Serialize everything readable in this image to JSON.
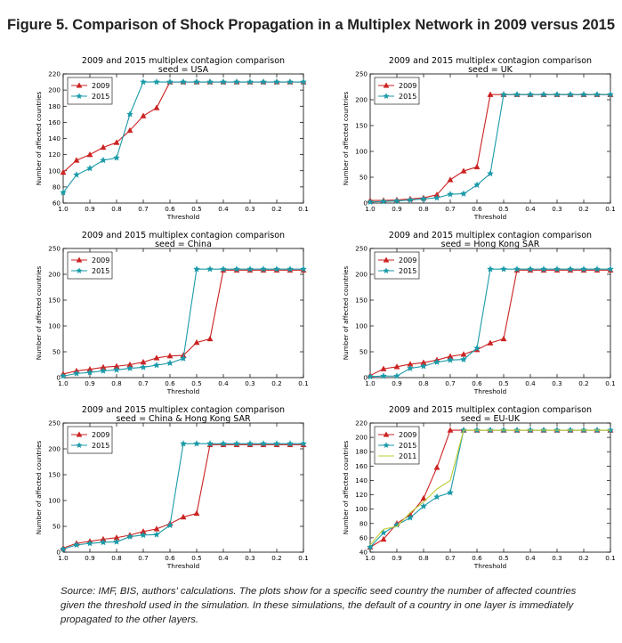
{
  "figure_title": "Figure 5. Comparison of Shock Propagation in a Multiplex Network in 2009 versus 2015",
  "source_note": "Source: IMF, BIS, authors' calculations. The plots show for a specific seed country the number of affected countries given the threshold used in the simulation. In these simulations, the default of a country in one layer is immediately propagated to the other layers.",
  "colors": {
    "2009": "#cc2222",
    "2015": "#1a9aa8",
    "2011": "#bccc33"
  },
  "chart_data": [
    {
      "type": "line",
      "title": "2009 and 2015 multiplex contagion comparison",
      "subtitle": "seed = USA",
      "xlabel": "Threshold",
      "ylabel": "Number of affected countries",
      "xlim": [
        1.0,
        0.1
      ],
      "ylim": [
        60,
        220
      ],
      "xticks": [
        "1.0",
        "0.9",
        "0.8",
        "0.7",
        "0.6",
        "0.5",
        "0.4",
        "0.3",
        "0.2",
        "0.1"
      ],
      "yticks": [
        "60",
        "80",
        "100",
        "120",
        "140",
        "160",
        "180",
        "200",
        "220"
      ],
      "legend": "upper-left",
      "series": [
        {
          "name": "2009",
          "marker": "triangle",
          "x": [
            1.0,
            0.95,
            0.9,
            0.85,
            0.8,
            0.75,
            0.7,
            0.65,
            0.6,
            0.55,
            0.5,
            0.45,
            0.4,
            0.35,
            0.3,
            0.25,
            0.2,
            0.15,
            0.1
          ],
          "y": [
            98,
            113,
            120,
            129,
            135,
            150,
            168,
            178,
            210,
            210,
            210,
            210,
            210,
            210,
            210,
            210,
            210,
            210,
            210
          ]
        },
        {
          "name": "2015",
          "marker": "star",
          "x": [
            1.0,
            0.95,
            0.9,
            0.85,
            0.8,
            0.75,
            0.7,
            0.65,
            0.6,
            0.55,
            0.5,
            0.45,
            0.4,
            0.35,
            0.3,
            0.25,
            0.2,
            0.15,
            0.1
          ],
          "y": [
            73,
            95,
            103,
            113,
            116,
            170,
            210,
            210,
            210,
            210,
            210,
            210,
            210,
            210,
            210,
            210,
            210,
            210,
            210
          ]
        }
      ]
    },
    {
      "type": "line",
      "title": "2009 and 2015 multiplex contagion comparison",
      "subtitle": "seed = UK",
      "xlabel": "Threshold",
      "ylabel": "Number of affected countries",
      "xlim": [
        1.0,
        0.1
      ],
      "ylim": [
        0,
        250
      ],
      "xticks": [
        "1.0",
        "0.9",
        "0.8",
        "0.7",
        "0.6",
        "0.5",
        "0.4",
        "0.3",
        "0.2",
        "0.1"
      ],
      "yticks": [
        "0",
        "50",
        "100",
        "150",
        "200",
        "250"
      ],
      "legend": "upper-left",
      "series": [
        {
          "name": "2009",
          "marker": "triangle",
          "x": [
            1.0,
            0.95,
            0.9,
            0.85,
            0.8,
            0.75,
            0.7,
            0.65,
            0.6,
            0.55,
            0.5,
            0.45,
            0.4,
            0.35,
            0.3,
            0.25,
            0.2,
            0.15,
            0.1
          ],
          "y": [
            5,
            5,
            6,
            8,
            10,
            16,
            45,
            62,
            70,
            210,
            210,
            210,
            210,
            210,
            210,
            210,
            210,
            210,
            210
          ]
        },
        {
          "name": "2015",
          "marker": "star",
          "x": [
            1.0,
            0.95,
            0.9,
            0.85,
            0.8,
            0.75,
            0.7,
            0.65,
            0.6,
            0.55,
            0.5,
            0.45,
            0.4,
            0.35,
            0.3,
            0.25,
            0.2,
            0.15,
            0.1
          ],
          "y": [
            2,
            3,
            4,
            6,
            8,
            10,
            17,
            18,
            35,
            57,
            210,
            210,
            210,
            210,
            210,
            210,
            210,
            210,
            210
          ]
        }
      ]
    },
    {
      "type": "line",
      "title": "2009 and 2015 multiplex contagion comparison",
      "subtitle": "seed = China",
      "xlabel": "Threshold",
      "ylabel": "Number of affected countries",
      "xlim": [
        1.0,
        0.1
      ],
      "ylim": [
        0,
        250
      ],
      "xticks": [
        "1.0",
        "0.9",
        "0.8",
        "0.7",
        "0.6",
        "0.5",
        "0.4",
        "0.3",
        "0.2",
        "0.1"
      ],
      "yticks": [
        "0",
        "50",
        "100",
        "150",
        "200",
        "250"
      ],
      "legend": "upper-left",
      "series": [
        {
          "name": "2009",
          "marker": "triangle",
          "x": [
            1.0,
            0.95,
            0.9,
            0.85,
            0.8,
            0.75,
            0.7,
            0.65,
            0.6,
            0.55,
            0.5,
            0.45,
            0.4,
            0.35,
            0.3,
            0.25,
            0.2,
            0.15,
            0.1
          ],
          "y": [
            7,
            13,
            16,
            20,
            22,
            25,
            30,
            38,
            42,
            43,
            68,
            75,
            208,
            208,
            208,
            208,
            208,
            208,
            208
          ]
        },
        {
          "name": "2015",
          "marker": "star",
          "x": [
            1.0,
            0.95,
            0.9,
            0.85,
            0.8,
            0.75,
            0.7,
            0.65,
            0.6,
            0.55,
            0.5,
            0.45,
            0.4,
            0.35,
            0.3,
            0.25,
            0.2,
            0.15,
            0.1
          ],
          "y": [
            3,
            8,
            10,
            13,
            15,
            18,
            20,
            24,
            28,
            37,
            210,
            210,
            210,
            210,
            210,
            210,
            210,
            210,
            210
          ]
        }
      ]
    },
    {
      "type": "line",
      "title": "2009 and 2015 multiplex contagion comparison",
      "subtitle": "seed = Hong Kong SAR",
      "xlabel": "Threshold",
      "ylabel": "Number of affected countries",
      "xlim": [
        1.0,
        0.1
      ],
      "ylim": [
        0,
        250
      ],
      "xticks": [
        "1.0",
        "0.9",
        "0.8",
        "0.7",
        "0.6",
        "0.5",
        "0.4",
        "0.3",
        "0.2",
        "0.1"
      ],
      "yticks": [
        "0",
        "50",
        "100",
        "150",
        "200",
        "250"
      ],
      "legend": "upper-left",
      "series": [
        {
          "name": "2009",
          "marker": "triangle",
          "x": [
            1.0,
            0.95,
            0.9,
            0.85,
            0.8,
            0.75,
            0.7,
            0.65,
            0.6,
            0.55,
            0.5,
            0.45,
            0.4,
            0.35,
            0.3,
            0.25,
            0.2,
            0.15,
            0.1
          ],
          "y": [
            4,
            17,
            21,
            26,
            29,
            34,
            41,
            45,
            54,
            67,
            75,
            208,
            208,
            208,
            208,
            208,
            208,
            208,
            208
          ]
        },
        {
          "name": "2015",
          "marker": "star",
          "x": [
            1.0,
            0.95,
            0.9,
            0.85,
            0.8,
            0.75,
            0.7,
            0.65,
            0.6,
            0.55,
            0.5,
            0.45,
            0.4,
            0.35,
            0.3,
            0.25,
            0.2,
            0.15,
            0.1
          ],
          "y": [
            2,
            3,
            3,
            18,
            22,
            30,
            34,
            35,
            57,
            210,
            210,
            210,
            210,
            210,
            210,
            210,
            210,
            210,
            210
          ]
        }
      ]
    },
    {
      "type": "line",
      "title": "2009 and 2015 multiplex contagion comparison",
      "subtitle": "seed = China & Hong Kong SAR",
      "xlabel": "Threshold",
      "ylabel": "Number of affected countries",
      "xlim": [
        1.0,
        0.1
      ],
      "ylim": [
        0,
        250
      ],
      "xticks": [
        "1.0",
        "0.9",
        "0.8",
        "0.7",
        "0.6",
        "0.5",
        "0.4",
        "0.3",
        "0.2",
        "0.1"
      ],
      "yticks": [
        "0",
        "50",
        "100",
        "150",
        "200",
        "250"
      ],
      "legend": "upper-left",
      "series": [
        {
          "name": "2009",
          "marker": "triangle",
          "x": [
            1.0,
            0.95,
            0.9,
            0.85,
            0.8,
            0.75,
            0.7,
            0.65,
            0.6,
            0.55,
            0.5,
            0.45,
            0.4,
            0.35,
            0.3,
            0.25,
            0.2,
            0.15,
            0.1
          ],
          "y": [
            8,
            17,
            21,
            25,
            28,
            33,
            40,
            45,
            55,
            68,
            75,
            208,
            208,
            208,
            208,
            208,
            208,
            208,
            208
          ]
        },
        {
          "name": "2015",
          "marker": "star",
          "x": [
            1.0,
            0.95,
            0.9,
            0.85,
            0.8,
            0.75,
            0.7,
            0.65,
            0.6,
            0.55,
            0.5,
            0.45,
            0.4,
            0.35,
            0.3,
            0.25,
            0.2,
            0.15,
            0.1
          ],
          "y": [
            6,
            14,
            17,
            19,
            20,
            30,
            33,
            34,
            52,
            210,
            210,
            210,
            210,
            210,
            210,
            210,
            210,
            210,
            210
          ]
        }
      ]
    },
    {
      "type": "line",
      "title": "2009 and 2015 multiplex contagion comparison",
      "subtitle": "seed = EU-UK",
      "xlabel": "Threshold",
      "ylabel": "Number of affected countries",
      "xlim": [
        1.0,
        0.1
      ],
      "ylim": [
        40,
        220
      ],
      "xticks": [
        "1.0",
        "0.9",
        "0.8",
        "0.7",
        "0.6",
        "0.5",
        "0.4",
        "0.3",
        "0.2",
        "0.1"
      ],
      "yticks": [
        "40",
        "60",
        "80",
        "100",
        "120",
        "140",
        "160",
        "180",
        "200",
        "220"
      ],
      "legend": "upper-left",
      "series": [
        {
          "name": "2009",
          "marker": "triangle",
          "x": [
            1.0,
            0.95,
            0.9,
            0.85,
            0.8,
            0.75,
            0.7,
            0.65,
            0.6,
            0.55,
            0.5,
            0.45,
            0.4,
            0.35,
            0.3,
            0.25,
            0.2,
            0.15,
            0.1
          ],
          "y": [
            47,
            58,
            80,
            92,
            115,
            158,
            210,
            210,
            210,
            210,
            210,
            210,
            210,
            210,
            210,
            210,
            210,
            210,
            210
          ]
        },
        {
          "name": "2015",
          "marker": "star",
          "x": [
            1.0,
            0.95,
            0.9,
            0.85,
            0.8,
            0.75,
            0.7,
            0.65,
            0.6,
            0.55,
            0.5,
            0.45,
            0.4,
            0.35,
            0.3,
            0.25,
            0.2,
            0.15,
            0.1
          ],
          "y": [
            47,
            67,
            78,
            88,
            104,
            117,
            123,
            210,
            210,
            210,
            210,
            210,
            210,
            210,
            210,
            210,
            210,
            210,
            210
          ]
        },
        {
          "name": "2011",
          "marker": "none",
          "x": [
            1.0,
            0.95,
            0.9,
            0.85,
            0.8,
            0.75,
            0.7,
            0.65,
            0.6,
            0.55,
            0.5,
            0.45,
            0.4,
            0.35,
            0.3,
            0.25,
            0.2,
            0.15,
            0.1
          ],
          "y": [
            50,
            72,
            76,
            95,
            110,
            128,
            140,
            210,
            210,
            210,
            210,
            210,
            210,
            210,
            210,
            210,
            210,
            210,
            210
          ]
        }
      ]
    }
  ]
}
